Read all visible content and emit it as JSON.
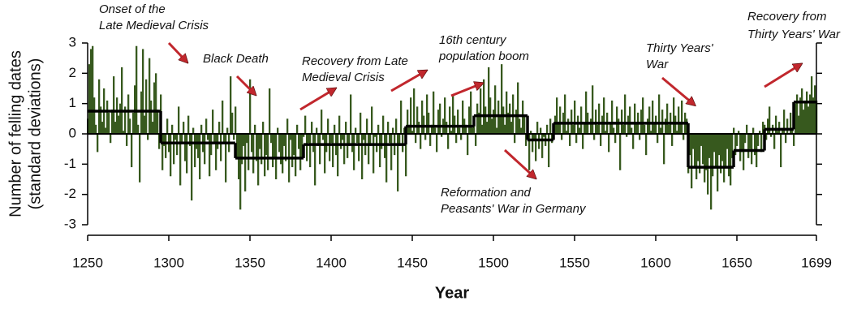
{
  "chart_data": {
    "type": "bar",
    "xlabel": "Year",
    "ylabel": [
      "Number of felling dates",
      "(standard deviations)"
    ],
    "xlim": [
      1250,
      1699
    ],
    "ylim": [
      -3,
      3
    ],
    "xticks": [
      1250,
      1300,
      1350,
      1400,
      1450,
      1500,
      1550,
      1600,
      1650,
      1699
    ],
    "yticks": [
      -3,
      -2,
      -1,
      0,
      1,
      2,
      3
    ],
    "color": "#37591e",
    "x": [
      1250,
      1251,
      1252,
      1253,
      1254,
      1255,
      1256,
      1257,
      1258,
      1259,
      1260,
      1261,
      1262,
      1263,
      1264,
      1265,
      1266,
      1267,
      1268,
      1269,
      1270,
      1271,
      1272,
      1273,
      1274,
      1275,
      1276,
      1277,
      1278,
      1279,
      1280,
      1281,
      1282,
      1283,
      1284,
      1285,
      1286,
      1287,
      1288,
      1289,
      1290,
      1291,
      1292,
      1293,
      1294,
      1295,
      1296,
      1297,
      1298,
      1299,
      1300,
      1301,
      1302,
      1303,
      1304,
      1305,
      1306,
      1307,
      1308,
      1309,
      1310,
      1311,
      1312,
      1313,
      1314,
      1315,
      1316,
      1317,
      1318,
      1319,
      1320,
      1321,
      1322,
      1323,
      1324,
      1325,
      1326,
      1327,
      1328,
      1329,
      1330,
      1331,
      1332,
      1333,
      1334,
      1335,
      1336,
      1337,
      1338,
      1339,
      1340,
      1341,
      1342,
      1343,
      1344,
      1345,
      1346,
      1347,
      1348,
      1349,
      1350,
      1351,
      1352,
      1353,
      1354,
      1355,
      1356,
      1357,
      1358,
      1359,
      1360,
      1361,
      1362,
      1363,
      1364,
      1365,
      1366,
      1367,
      1368,
      1369,
      1370,
      1371,
      1372,
      1373,
      1374,
      1375,
      1376,
      1377,
      1378,
      1379,
      1380,
      1381,
      1382,
      1383,
      1384,
      1385,
      1386,
      1387,
      1388,
      1389,
      1390,
      1391,
      1392,
      1393,
      1394,
      1395,
      1396,
      1397,
      1398,
      1399,
      1400,
      1401,
      1402,
      1403,
      1404,
      1405,
      1406,
      1407,
      1408,
      1409,
      1410,
      1411,
      1412,
      1413,
      1414,
      1415,
      1416,
      1417,
      1418,
      1419,
      1420,
      1421,
      1422,
      1423,
      1424,
      1425,
      1426,
      1427,
      1428,
      1429,
      1430,
      1431,
      1432,
      1433,
      1434,
      1435,
      1436,
      1437,
      1438,
      1439,
      1440,
      1441,
      1442,
      1443,
      1444,
      1445,
      1446,
      1447,
      1448,
      1449,
      1450,
      1451,
      1452,
      1453,
      1454,
      1455,
      1456,
      1457,
      1458,
      1459,
      1460,
      1461,
      1462,
      1463,
      1464,
      1465,
      1466,
      1467,
      1468,
      1469,
      1470,
      1471,
      1472,
      1473,
      1474,
      1475,
      1476,
      1477,
      1478,
      1479,
      1480,
      1481,
      1482,
      1483,
      1484,
      1485,
      1486,
      1487,
      1488,
      1489,
      1490,
      1491,
      1492,
      1493,
      1494,
      1495,
      1496,
      1497,
      1498,
      1499,
      1500,
      1501,
      1502,
      1503,
      1504,
      1505,
      1506,
      1507,
      1508,
      1509,
      1510,
      1511,
      1512,
      1513,
      1514,
      1515,
      1516,
      1517,
      1518,
      1519,
      1520,
      1521,
      1522,
      1523,
      1524,
      1525,
      1526,
      1527,
      1528,
      1529,
      1530,
      1531,
      1532,
      1533,
      1534,
      1535,
      1536,
      1537,
      1538,
      1539,
      1540,
      1541,
      1542,
      1543,
      1544,
      1545,
      1546,
      1547,
      1548,
      1549,
      1550,
      1551,
      1552,
      1553,
      1554,
      1555,
      1556,
      1557,
      1558,
      1559,
      1560,
      1561,
      1562,
      1563,
      1564,
      1565,
      1566,
      1567,
      1568,
      1569,
      1570,
      1571,
      1572,
      1573,
      1574,
      1575,
      1576,
      1577,
      1578,
      1579,
      1580,
      1581,
      1582,
      1583,
      1584,
      1585,
      1586,
      1587,
      1588,
      1589,
      1590,
      1591,
      1592,
      1593,
      1594,
      1595,
      1596,
      1597,
      1598,
      1599,
      1600,
      1601,
      1602,
      1603,
      1604,
      1605,
      1606,
      1607,
      1608,
      1609,
      1610,
      1611,
      1612,
      1613,
      1614,
      1615,
      1616,
      1617,
      1618,
      1619,
      1620,
      1621,
      1622,
      1623,
      1624,
      1625,
      1626,
      1627,
      1628,
      1629,
      1630,
      1631,
      1632,
      1633,
      1634,
      1635,
      1636,
      1637,
      1638,
      1639,
      1640,
      1641,
      1642,
      1643,
      1644,
      1645,
      1646,
      1647,
      1648,
      1649,
      1650,
      1651,
      1652,
      1653,
      1654,
      1655,
      1656,
      1657,
      1658,
      1659,
      1660,
      1661,
      1662,
      1663,
      1664,
      1665,
      1666,
      1667,
      1668,
      1669,
      1670,
      1671,
      1672,
      1673,
      1674,
      1675,
      1676,
      1677,
      1678,
      1679,
      1680,
      1681,
      1682,
      1683,
      1684,
      1685,
      1686,
      1687,
      1688,
      1689,
      1690,
      1691,
      1692,
      1693,
      1694,
      1695,
      1696,
      1697,
      1698,
      1699
    ],
    "values": [
      0.5,
      2.3,
      2.8,
      2.9,
      1.2,
      0.3,
      -0.6,
      1.8,
      0.9,
      0.4,
      1.5,
      0.2,
      1.1,
      0.7,
      -0.3,
      0.8,
      1.9,
      0.4,
      1.2,
      0.6,
      1.0,
      2.2,
      0.1,
      0.9,
      -0.4,
      1.3,
      0.5,
      -1.1,
      0.7,
      1.6,
      2.9,
      0.3,
      -1.6,
      1.4,
      2.8,
      0.6,
      1.8,
      -0.2,
      2.5,
      1.1,
      0.4,
      1.7,
      2.0,
      0.8,
      -0.5,
      1.3,
      -1.2,
      -0.4,
      -0.8,
      0.5,
      -0.6,
      -1.4,
      0.3,
      -1.0,
      -0.2,
      -0.7,
      0.9,
      -1.7,
      -0.3,
      0.4,
      -0.9,
      -1.3,
      0.6,
      -0.4,
      -2.2,
      0.2,
      -1.1,
      -0.5,
      -0.8,
      -1.5,
      0.3,
      -0.6,
      -1.0,
      0.5,
      -0.2,
      -1.4,
      -0.7,
      0.8,
      -0.3,
      -1.2,
      -0.5,
      0.4,
      -0.9,
      1.1,
      -0.3,
      -1.6,
      0.2,
      -0.6,
      1.9,
      0.7,
      -0.2,
      0.9,
      -0.8,
      -1.5,
      -2.5,
      -1.0,
      -0.4,
      -1.9,
      -0.3,
      -1.2,
      1.8,
      -0.6,
      -1.3,
      0.3,
      -0.9,
      -1.7,
      -0.5,
      -1.0,
      0.4,
      -1.4,
      -0.7,
      -1.2,
      1.5,
      -0.3,
      -1.1,
      -0.8,
      -1.5,
      0.2,
      -0.6,
      -1.0,
      -1.3,
      -0.4,
      -0.9,
      0.5,
      -1.6,
      -0.2,
      -1.1,
      -0.7,
      -1.4,
      0.3,
      -0.5,
      -1.2,
      -0.8,
      -0.1,
      0.6,
      -0.9,
      -0.3,
      -1.1,
      0.4,
      -0.6,
      -1.7,
      0.2,
      -0.4,
      -1.0,
      0.8,
      -0.2,
      -1.3,
      -0.6,
      0.5,
      -0.9,
      -0.3,
      -1.1,
      0.3,
      -0.7,
      -1.4,
      0.6,
      -0.5,
      -0.2,
      -1.0,
      0.4,
      -0.8,
      -0.4,
      1.3,
      -0.6,
      -1.2,
      0.2,
      -0.3,
      -0.9,
      0.7,
      -1.5,
      -0.2,
      -0.7,
      0.5,
      -1.0,
      -0.4,
      0.9,
      -1.3,
      -0.1,
      -0.6,
      0.3,
      -1.1,
      -0.5,
      0.6,
      -0.8,
      -1.6,
      0.4,
      -0.3,
      -1.2,
      0.2,
      -0.7,
      0.5,
      -1.9,
      -0.4,
      1.1,
      -0.6,
      0.2,
      -1.4,
      0.8,
      0.3,
      1.2,
      0.1,
      1.5,
      -0.3,
      0.9,
      0.4,
      -0.5,
      1.1,
      0.6,
      -0.2,
      1.3,
      0.7,
      -0.4,
      0.3,
      1.4,
      0.2,
      -0.6,
      0.8,
      1.0,
      -0.1,
      0.5,
      1.2,
      0.4,
      -0.5,
      0.9,
      0.1,
      1.3,
      0.6,
      -0.3,
      0.8,
      0.2,
      -0.2,
      1.1,
      0.5,
      0.3,
      -0.7,
      0.9,
      1.4,
      0.2,
      0.6,
      -0.4,
      1.0,
      0.7,
      1.5,
      0.3,
      1.8,
      0.9,
      0.4,
      2.2,
      1.2,
      0.5,
      0.8,
      1.6,
      0.2,
      1.1,
      0.6,
      2.3,
      0.9,
      0.3,
      1.4,
      0.7,
      1.0,
      0.4,
      1.3,
      -0.3,
      0.8,
      1.7,
      0.5,
      0.2,
      1.1,
      0.6,
      -0.4,
      0.3,
      -1.2,
      0.1,
      -0.6,
      -0.2,
      -0.9,
      0.4,
      -0.5,
      0.2,
      -0.8,
      -0.1,
      -0.4,
      0.3,
      -1.1,
      0.5,
      -0.3,
      0.1,
      0.6,
      1.2,
      0.4,
      0.9,
      -0.2,
      0.7,
      1.3,
      0.1,
      0.5,
      -0.4,
      0.8,
      0.3,
      1.1,
      -0.3,
      0.6,
      0.2,
      0.9,
      -0.5,
      0.4,
      1.4,
      0.7,
      0.0,
      0.5,
      1.6,
      -0.2,
      0.8,
      0.3,
      1.0,
      -0.4,
      0.6,
      1.2,
      0.1,
      0.7,
      -0.6,
      0.4,
      1.1,
      0.2,
      -0.3,
      0.9,
      0.5,
      -1.2,
      0.8,
      0.3,
      1.3,
      -0.1,
      0.6,
      0.9,
      0.2,
      -0.5,
      1.0,
      0.4,
      0.7,
      -0.2,
      0.8,
      1.2,
      0.3,
      -0.7,
      0.5,
      0.9,
      0.1,
      1.1,
      0.4,
      0.6,
      -0.3,
      1.3,
      0.2,
      0.8,
      -1.0,
      0.5,
      1.0,
      0.3,
      0.7,
      -0.4,
      1.2,
      0.6,
      0.1,
      0.9,
      0.4,
      1.1,
      -0.2,
      0.7,
      0.5,
      -1.3,
      -0.7,
      -1.8,
      -0.5,
      -1.1,
      -1.5,
      -0.9,
      -1.3,
      -0.4,
      -1.0,
      -1.6,
      -1.2,
      -2.0,
      -0.8,
      -2.5,
      -1.4,
      -0.6,
      -1.1,
      -1.9,
      -0.7,
      -1.3,
      -0.9,
      -1.6,
      -1.1,
      -0.5,
      -1.4,
      -1.7,
      -0.8,
      0.2,
      -0.7,
      -0.4,
      0.1,
      -0.9,
      -0.6,
      -1.2,
      -0.3,
      0.3,
      -0.8,
      -0.5,
      -1.0,
      0.2,
      -0.7,
      -1.1,
      -0.4,
      0.1,
      -0.6,
      0.4,
      0.3,
      -0.2,
      0.5,
      0.9,
      -0.1,
      0.3,
      -0.5,
      0.6,
      0.1,
      0.4,
      -1.1,
      0.2,
      0.8,
      -0.3,
      0.5,
      0.0,
      0.7,
      0.2,
      -0.4,
      1.0,
      1.3,
      0.6,
      1.2,
      1.5,
      0.8,
      1.1,
      1.4,
      0.9,
      1.3,
      1.9,
      1.2,
      1.6,
      1.1
    ],
    "regimes": [
      {
        "start": 1250,
        "end": 1295,
        "value": 0.75
      },
      {
        "start": 1295,
        "end": 1341,
        "value": -0.3
      },
      {
        "start": 1341,
        "end": 1383,
        "value": -0.8
      },
      {
        "start": 1383,
        "end": 1446,
        "value": -0.35
      },
      {
        "start": 1446,
        "end": 1488,
        "value": 0.25
      },
      {
        "start": 1488,
        "end": 1521,
        "value": 0.6
      },
      {
        "start": 1521,
        "end": 1537,
        "value": -0.2
      },
      {
        "start": 1537,
        "end": 1620,
        "value": 0.35
      },
      {
        "start": 1620,
        "end": 1648,
        "value": -1.1
      },
      {
        "start": 1648,
        "end": 1667,
        "value": -0.55
      },
      {
        "start": 1667,
        "end": 1685,
        "value": 0.15
      },
      {
        "start": 1685,
        "end": 1699,
        "value": 1.05
      }
    ],
    "regime_color": "#000000",
    "annotations": [
      {
        "lines": [
          "Onset of the",
          "Late Medieval Crisis"
        ]
      },
      {
        "lines": [
          "Black Death"
        ]
      },
      {
        "lines": [
          "Recovery from Late",
          "Medieval Crisis"
        ]
      },
      {
        "lines": [
          "16th century",
          "population boom"
        ]
      },
      {
        "lines": [
          "Reformation and",
          "Peasants' War in Germany"
        ]
      },
      {
        "lines": [
          "Thirty Years'",
          "War"
        ]
      },
      {
        "lines": [
          "Recovery from",
          "Thirty Years' War"
        ]
      }
    ]
  }
}
